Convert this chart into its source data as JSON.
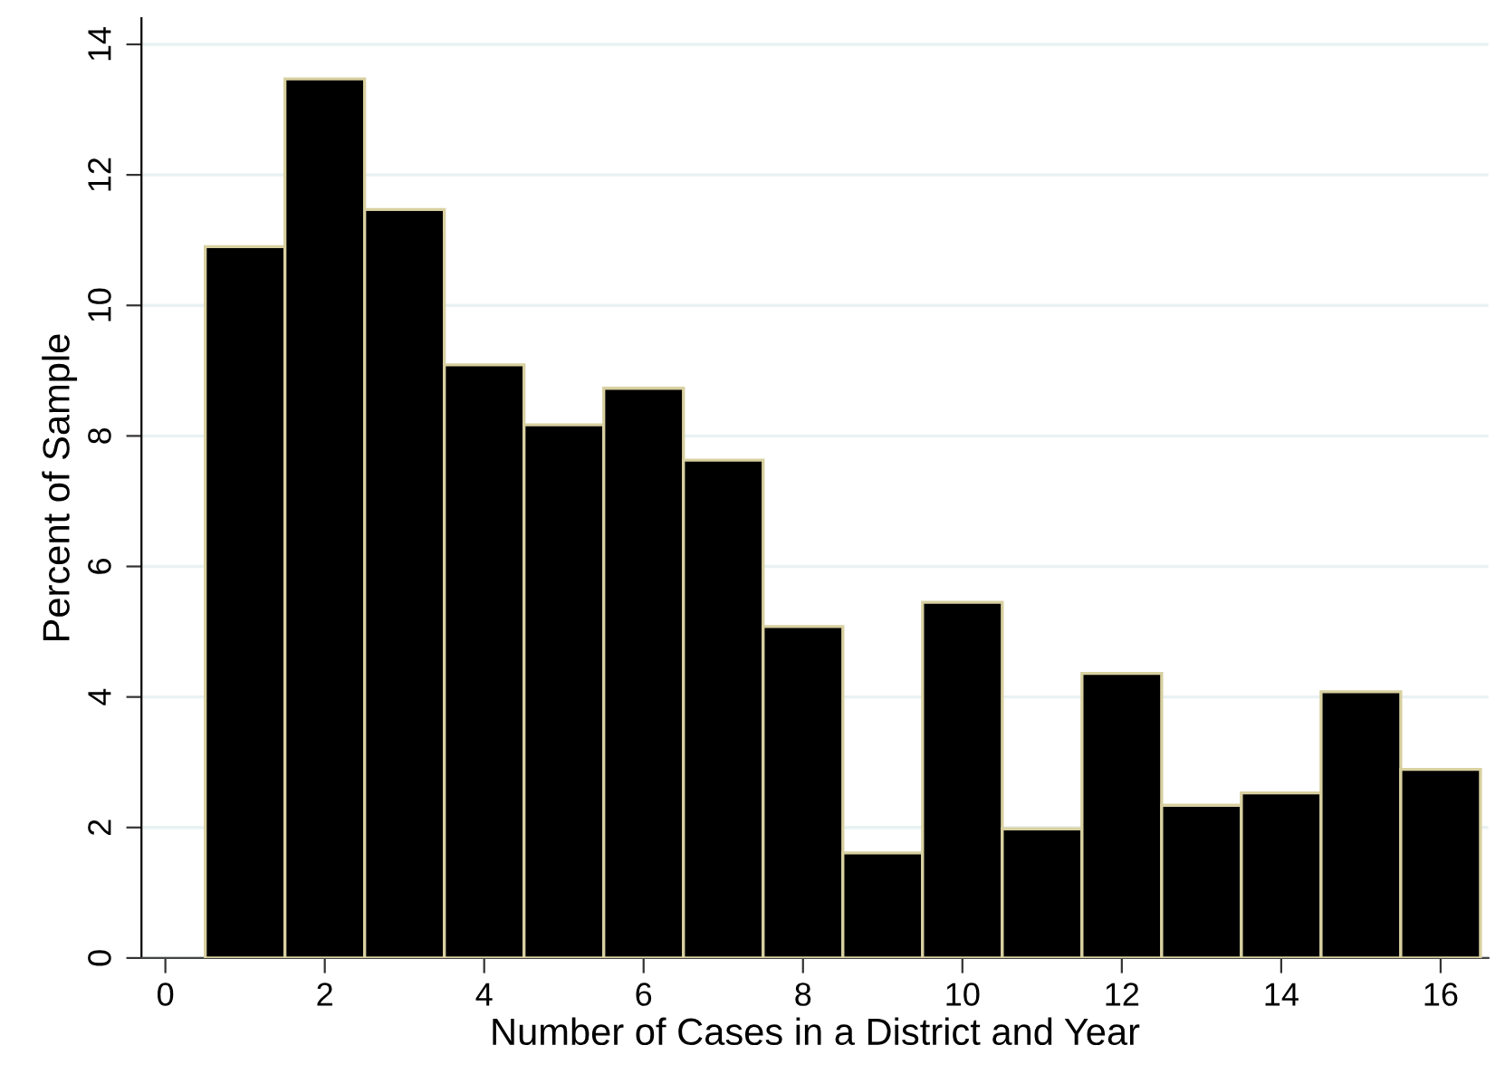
{
  "chart_data": {
    "type": "histogram",
    "xlabel": "Number of Cases in a District and Year",
    "ylabel": "Percent of Sample",
    "bins": [
      0.5,
      1.5,
      2.5,
      3.5,
      4.5,
      5.5,
      6.5,
      7.5,
      8.5,
      9.5,
      10.5,
      11.5,
      12.5,
      13.5,
      14.5,
      15.5,
      16.5
    ],
    "values": [
      10.9,
      13.47,
      11.47,
      9.09,
      8.17,
      8.73,
      7.63,
      5.08,
      1.61,
      5.45,
      1.98,
      4.36,
      2.34,
      2.53,
      4.08,
      2.89
    ],
    "color": "#000000",
    "xlim": [
      -0.3,
      16.6
    ],
    "ylim": [
      0,
      14.4
    ],
    "xticks": [
      0,
      2,
      4,
      6,
      8,
      10,
      12,
      14,
      16
    ],
    "yticks": [
      0,
      2,
      4,
      6,
      8,
      10,
      12,
      14
    ],
    "grid": "y"
  }
}
